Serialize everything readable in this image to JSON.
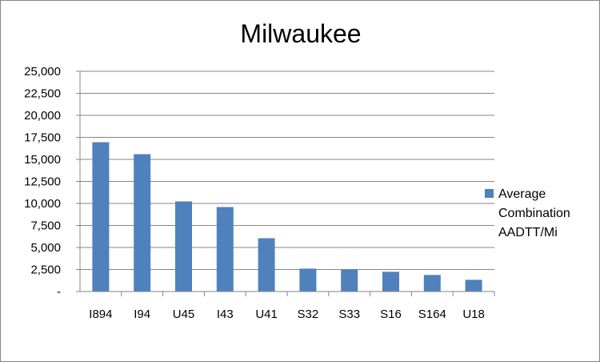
{
  "chart_data": {
    "type": "bar",
    "title": "Milwaukee",
    "categories": [
      "I894",
      "I94",
      "U45",
      "I43",
      "U41",
      "S32",
      "S33",
      "S16",
      "S164",
      "U18"
    ],
    "series": [
      {
        "name": "Average Combination AADTT/Mi",
        "values": [
          16950,
          15590,
          10230,
          9590,
          6050,
          2600,
          2510,
          2240,
          1880,
          1330
        ],
        "color": "#4f81bd"
      }
    ],
    "ylim": [
      0,
      25000
    ],
    "yticks": [
      0,
      2500,
      5000,
      7500,
      10000,
      12500,
      15000,
      17500,
      20000,
      22500,
      25000
    ],
    "ytick_labels": [
      "-",
      "2,500",
      "5,000",
      "7,500",
      "10,000",
      "12,500",
      "15,000",
      "17,500",
      "20,000",
      "22,500",
      "25,000"
    ],
    "grid": true,
    "legend_position": "right",
    "legend_lines": [
      "Average",
      "Combination",
      "AADTT/Mi"
    ]
  }
}
